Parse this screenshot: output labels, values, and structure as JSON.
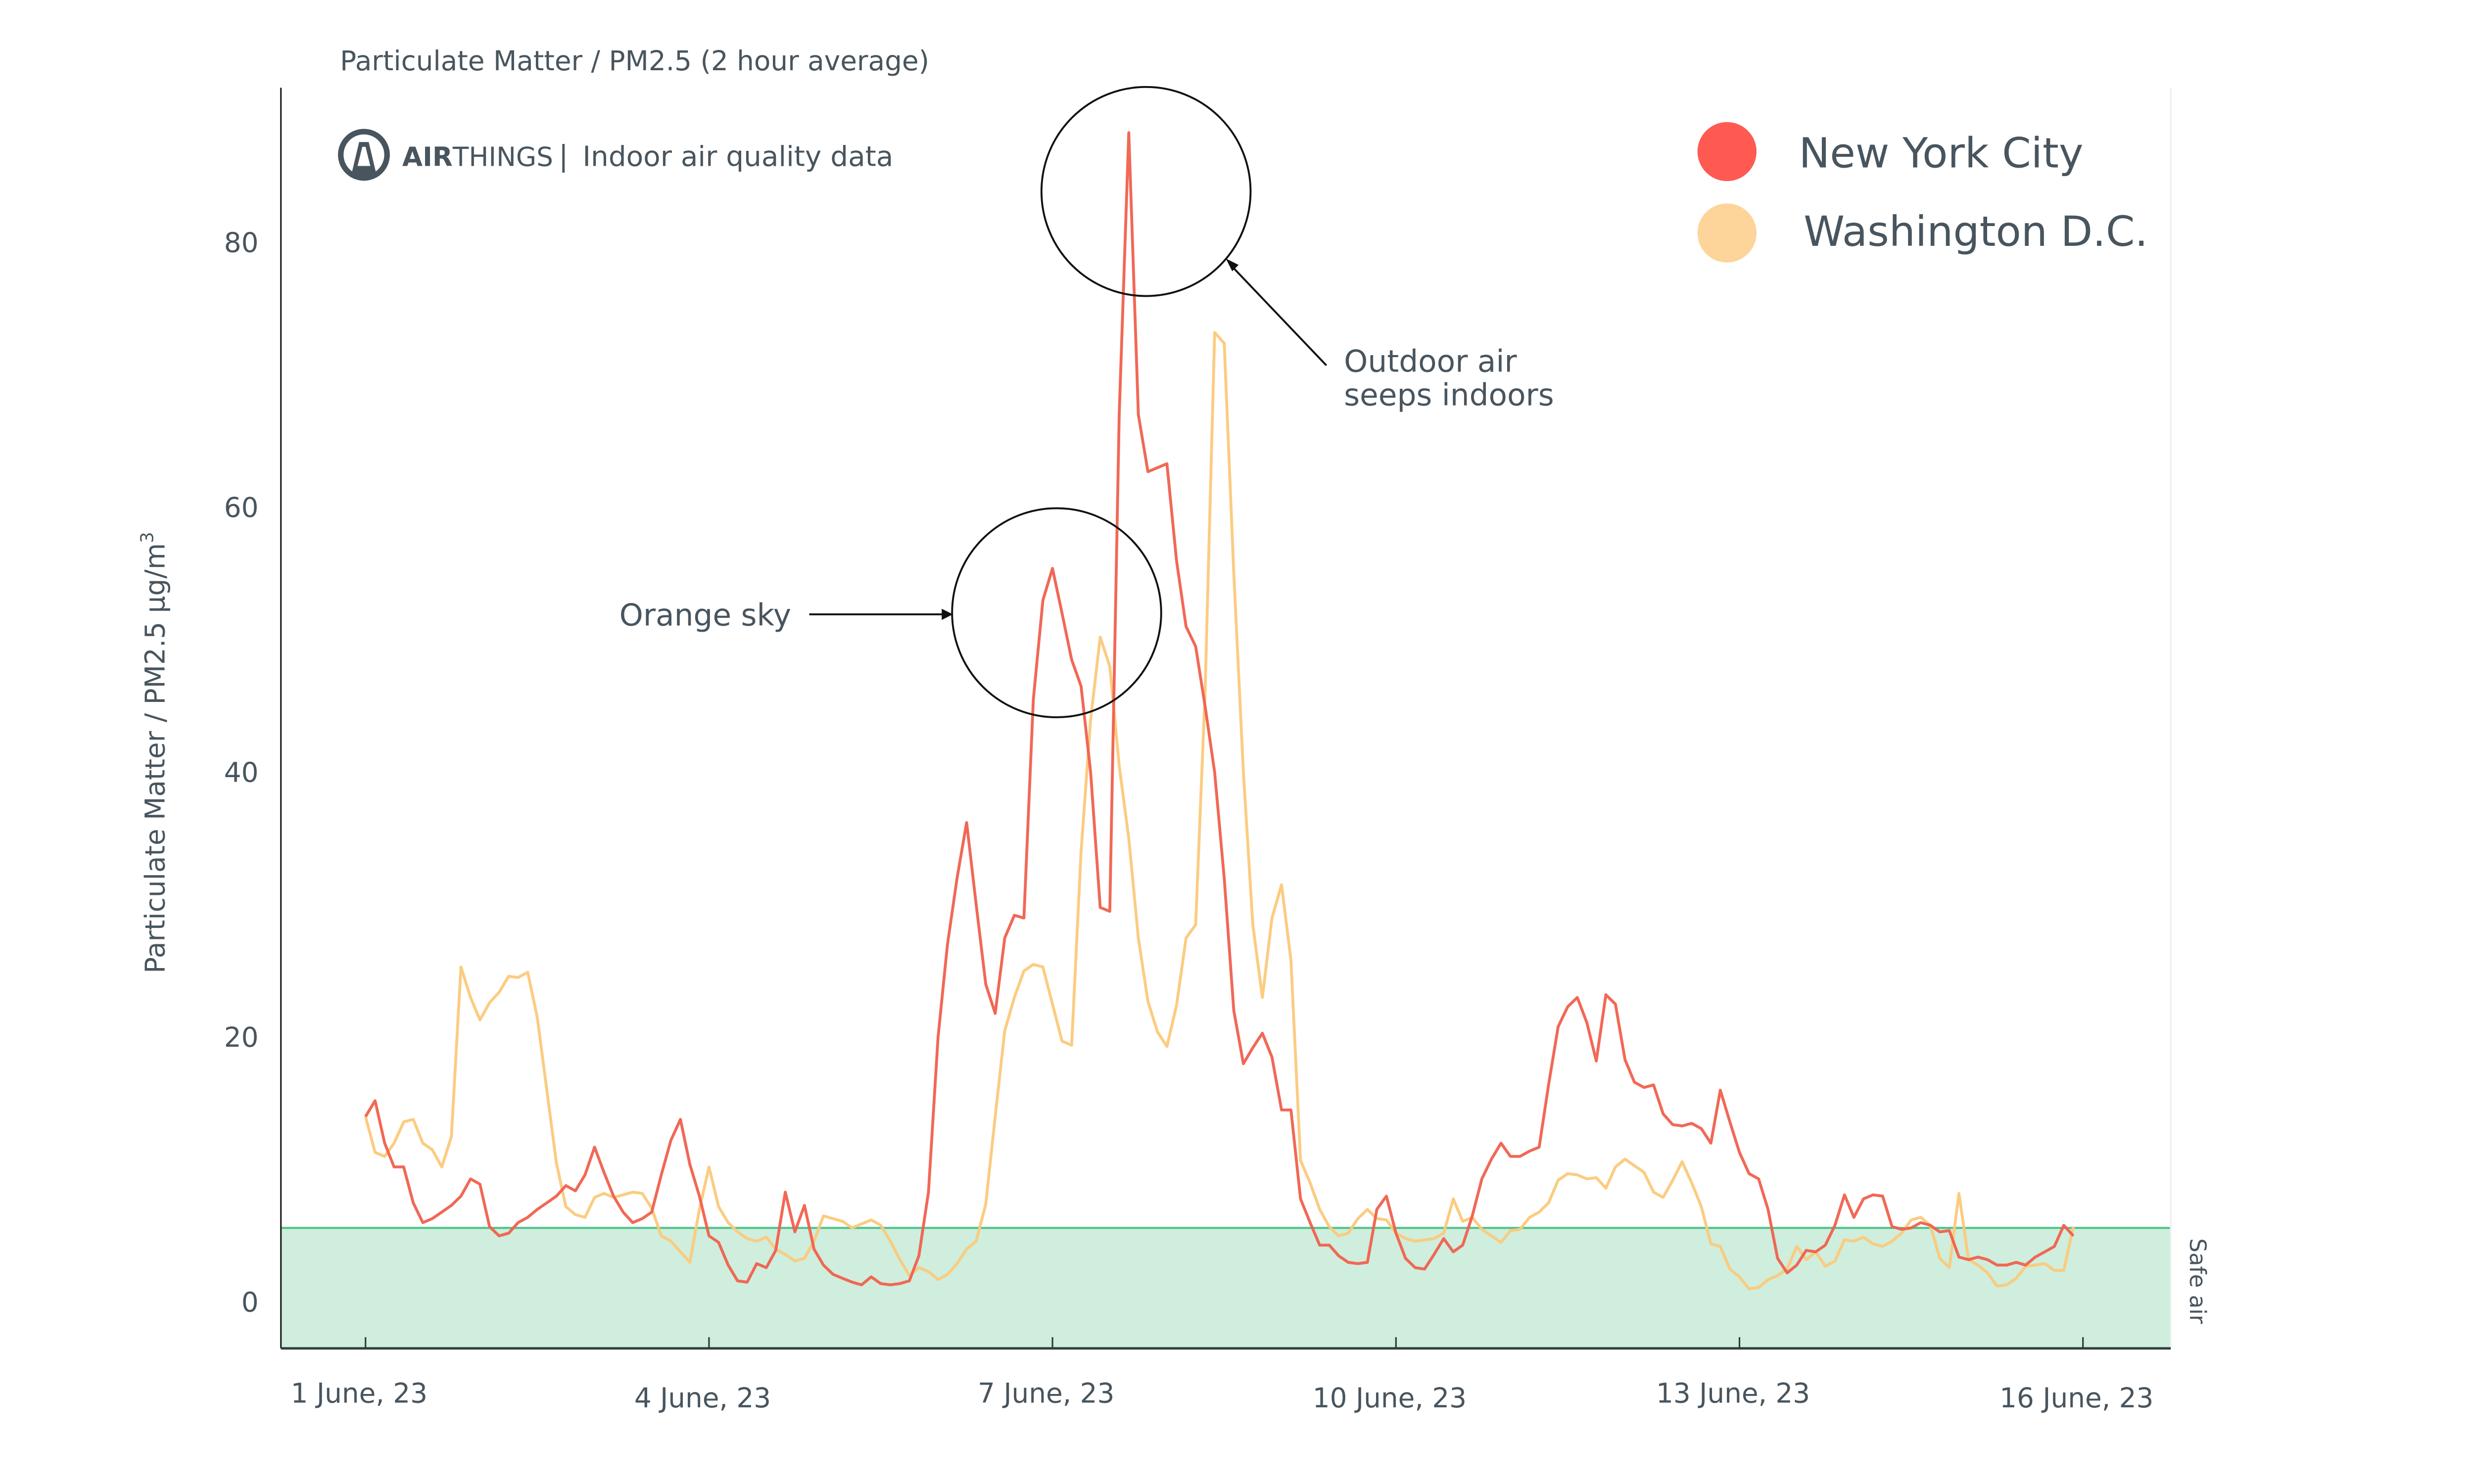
{
  "header": {
    "title": "Particulate Matter / PM2.5 (2 hour average)",
    "brand_bold": "AIR",
    "brand_light": "THINGS",
    "brand_separator": "|",
    "brand_tagline": "Indoor air quality data"
  },
  "chart_data": {
    "type": "line",
    "title": "Particulate Matter / PM2.5 (2 hour average)",
    "xlabel": "",
    "ylabel": "Particulate Matter / PM2.5 µg/m",
    "ylabel_superscript": "3",
    "ylim": [
      -3.5,
      91
    ],
    "yticks": [
      0,
      20,
      40,
      60,
      80
    ],
    "xtick_labels": [
      "1 June, 23",
      "4 June, 23",
      "7 June, 23",
      "10 June, 23",
      "13 June, 23",
      "16 June, 23"
    ],
    "xtick_dates": [
      "2023-06-01",
      "2023-06-04",
      "2023-06-07",
      "2023-06-10",
      "2023-06-13",
      "2023-06-16"
    ],
    "x_start": "2023-06-01T00:00",
    "x_step_hours": 2,
    "grid": false,
    "legend_position": "top-right",
    "safe_zone": {
      "label": "Safe air",
      "upper": 5.6,
      "color": "#cfeedd",
      "line_color": "#4cc38a"
    },
    "annotations": [
      {
        "text_lines": [
          "Outdoor air",
          "seeps indoors"
        ],
        "x": "2023-06-08T22:00",
        "y": 84
      },
      {
        "text_lines": [
          "Orange sky"
        ],
        "x": "2023-06-07T00:00",
        "y": 52
      }
    ],
    "series": [
      {
        "name": "New York City",
        "color": "#f0604d",
        "legend_color": "#ff5a52",
        "values": [
          14,
          15.2,
          12,
          10.2,
          10.2,
          7.5,
          6,
          6.3,
          6.8,
          7.3,
          8,
          9.3,
          8.9,
          5.7,
          5,
          5.2,
          6,
          6.4,
          7,
          7.5,
          8,
          8.8,
          8.4,
          9.6,
          11.7,
          9.8,
          8,
          6.8,
          6,
          6.3,
          6.8,
          9.6,
          12.2,
          13.8,
          10.4,
          8,
          5,
          4.5,
          2.8,
          1.6,
          1.5,
          2.9,
          2.6,
          3.9,
          8.3,
          5.3,
          7.3,
          4,
          2.8,
          2.1,
          1.8,
          1.5,
          1.3,
          1.9,
          1.4,
          1.3,
          1.4,
          1.6,
          3.5,
          8.3,
          20,
          27,
          32,
          36.2,
          30,
          24,
          21.8,
          27.5,
          29.2,
          29,
          45.5,
          53,
          55.4,
          52,
          48.5,
          46.5,
          40,
          29.8,
          29.5,
          67,
          88.3,
          67,
          62.7,
          63,
          63.3,
          56,
          51,
          49.5,
          45,
          40,
          32,
          22,
          18,
          19.2,
          20.3,
          18.5,
          14.5,
          14.5,
          7.8,
          6,
          4.3,
          4.3,
          3.5,
          3,
          2.9,
          3,
          7,
          8,
          5.2,
          3.3,
          2.6,
          2.5,
          3.6,
          4.8,
          3.8,
          4.3,
          6.5,
          9.3,
          10.8,
          12,
          11,
          11,
          11.4,
          11.7,
          16.4,
          20.8,
          22.3,
          23,
          21.1,
          18.2,
          23.2,
          22.5,
          18.3,
          16.6,
          16.2,
          16.4,
          14.2,
          13.4,
          13.3,
          13.5,
          13.1,
          12,
          16,
          13.6,
          11.3,
          9.7,
          9.3,
          7,
          3.3,
          2.2,
          2.8,
          3.9,
          3.8,
          4.3,
          5.8,
          8.1,
          6.4,
          7.8,
          8.1,
          8,
          5.7,
          5.5,
          5.6,
          6,
          5.8,
          5.3,
          5.4,
          3.4,
          3.2,
          3.4,
          3.2,
          2.8,
          2.8,
          3,
          2.8,
          3.4,
          3.8,
          4.2,
          5.8,
          5
        ]
      },
      {
        "name": "Washington D.C.",
        "color": "#fbc97a",
        "legend_color": "#fdd49a",
        "values": [
          14,
          11.3,
          11,
          12,
          13.6,
          13.8,
          12,
          11.5,
          10.2,
          12.5,
          25.3,
          23,
          21.3,
          22.6,
          23.4,
          24.6,
          24.5,
          24.9,
          21.5,
          16,
          10.5,
          7.2,
          6.6,
          6.4,
          7.9,
          8.2,
          7.9,
          8.1,
          8.3,
          8.2,
          7.1,
          5,
          4.6,
          3.8,
          3,
          7,
          10.2,
          7.2,
          6,
          5.3,
          4.8,
          4.6,
          4.9,
          4,
          3.6,
          3.1,
          3.3,
          4.6,
          6.5,
          6.3,
          6.1,
          5.6,
          5.9,
          6.2,
          5.8,
          4.6,
          3.2,
          2,
          2.6,
          2.3,
          1.7,
          2.1,
          2.9,
          4,
          4.6,
          7.4,
          14,
          20.5,
          23,
          25,
          25.5,
          25.3,
          22.5,
          19.7,
          19.4,
          34,
          44,
          50.2,
          48,
          40.5,
          35,
          27.5,
          22.7,
          20.4,
          19.3,
          22.4,
          27.5,
          28.5,
          46,
          73.2,
          72.4,
          55,
          40,
          28.5,
          23,
          29,
          31.5,
          25.8,
          10.7,
          9,
          7,
          5.7,
          5,
          5.2,
          6.3,
          7,
          6.3,
          6.2,
          5.2,
          4.8,
          4.6,
          4.7,
          4.8,
          5.2,
          7.8,
          6.1,
          6.4,
          5.5,
          5,
          4.5,
          5.4,
          5.5,
          6.4,
          6.8,
          7.5,
          9.2,
          9.7,
          9.6,
          9.3,
          9.4,
          8.6,
          10.2,
          10.8,
          10.3,
          9.8,
          8.3,
          7.9,
          9.2,
          10.6,
          9,
          7.2,
          4.4,
          4.2,
          2.5,
          1.9,
          1,
          1.1,
          1.7,
          2,
          2.5,
          4.2,
          3.2,
          3.8,
          2.7,
          3.1,
          4.7,
          4.6,
          4.9,
          4.4,
          4.2,
          4.6,
          5.2,
          6.2,
          6.4,
          5.8,
          3.3,
          2.6,
          8.2,
          3.2,
          2.8,
          2.2,
          1.2,
          1.3,
          1.8,
          2.7,
          2.8,
          2.9,
          2.4,
          2.4,
          5.7
        ]
      }
    ]
  }
}
